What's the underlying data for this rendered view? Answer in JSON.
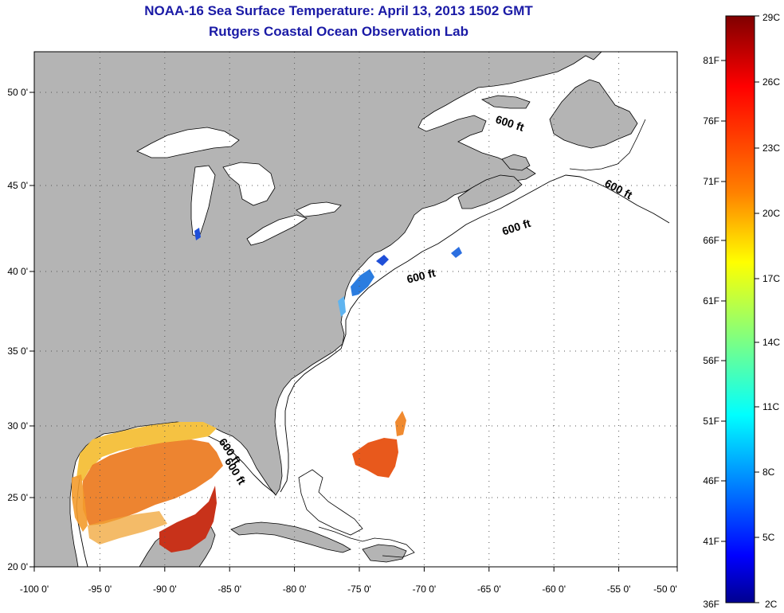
{
  "title": "NOAA-16 Sea Surface Temperature:  April 13, 2013 1502 GMT",
  "subtitle": "Rutgers Coastal Ocean Observation Lab",
  "map": {
    "lon_range": [
      -100,
      -50
    ],
    "lat_range": [
      20,
      52
    ],
    "x_ticks": [
      "-100 0'",
      "-95 0'",
      "-90 0'",
      "-85 0'",
      "-80 0'",
      "-75 0'",
      "-70 0'",
      "-65 0'",
      "-60 0'",
      "-55 0'",
      "-50 0'"
    ],
    "y_ticks": [
      "20 0'",
      "25 0'",
      "30 0'",
      "35 0'",
      "40 0'",
      "45 0'",
      "50 0'"
    ],
    "grid": "dotted",
    "land_color": "#b4b4b4",
    "contour_label": "600 ft",
    "contour_label_count": 6
  },
  "colorbar": {
    "celsius_labels": [
      "29C",
      "26C",
      "23C",
      "20C",
      "17C",
      "14C",
      "11C",
      "8C",
      "5C",
      "2C"
    ],
    "fahrenheit_labels": [
      "81F",
      "76F",
      "71F",
      "66F",
      "61F",
      "56F",
      "51F",
      "46F",
      "41F",
      "36F"
    ],
    "colors": [
      "#7f0000",
      "#ff0000",
      "#ff8000",
      "#ffff00",
      "#80ff80",
      "#00ffff",
      "#0080ff",
      "#0000ff",
      "#00008f"
    ]
  }
}
